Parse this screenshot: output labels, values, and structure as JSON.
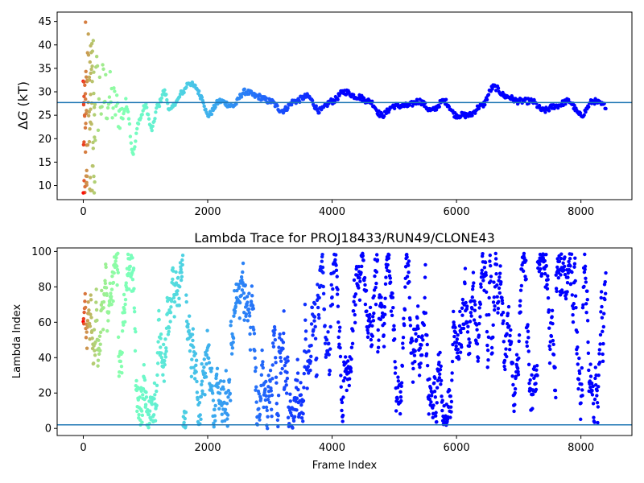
{
  "chart_data": [
    {
      "type": "scatter",
      "title": "",
      "xlabel": "",
      "ylabel": "ΔG (kT)",
      "ylabel_parts": [
        "Δ",
        "G",
        " (kT)"
      ],
      "xlim": [
        -420,
        8820
      ],
      "ylim": [
        7,
        47
      ],
      "xticks": [
        0,
        2000,
        4000,
        6000,
        8000
      ],
      "yticks": [
        10,
        15,
        20,
        25,
        30,
        35,
        40,
        45
      ],
      "hline": 27.7,
      "hline_color": "#1f77b4",
      "colormap": "rainbow (reversed over frame index)",
      "grid": false,
      "n_frames": 8400,
      "series_description": "Free energy estimate per frame; large spread (8–45) in first ~200 frames, converging to ~25–31 band after ~1500",
      "trace_keypoints": [
        [
          0,
          28
        ],
        [
          100,
          30
        ],
        [
          200,
          29
        ],
        [
          300,
          29
        ],
        [
          400,
          29
        ],
        [
          500,
          27
        ],
        [
          600,
          25
        ],
        [
          700,
          27
        ],
        [
          800,
          17
        ],
        [
          900,
          24
        ],
        [
          1000,
          27
        ],
        [
          1100,
          22
        ],
        [
          1200,
          27
        ],
        [
          1300,
          30
        ],
        [
          1400,
          26
        ],
        [
          1500,
          28
        ],
        [
          1600,
          30
        ],
        [
          1700,
          32
        ],
        [
          1800,
          31
        ],
        [
          1900,
          29
        ],
        [
          2000,
          25
        ],
        [
          2200,
          28
        ],
        [
          2400,
          27
        ],
        [
          2600,
          30
        ],
        [
          2800,
          29
        ],
        [
          3000,
          28
        ],
        [
          3200,
          26
        ],
        [
          3400,
          28
        ],
        [
          3600,
          29
        ],
        [
          3800,
          26
        ],
        [
          4000,
          28
        ],
        [
          4200,
          30
        ],
        [
          4400,
          29
        ],
        [
          4600,
          28
        ],
        [
          4800,
          25
        ],
        [
          5000,
          27
        ],
        [
          5200,
          27
        ],
        [
          5400,
          28
        ],
        [
          5600,
          26
        ],
        [
          5800,
          28
        ],
        [
          6000,
          25
        ],
        [
          6200,
          25
        ],
        [
          6400,
          27
        ],
        [
          6600,
          31
        ],
        [
          6800,
          29
        ],
        [
          7000,
          28
        ],
        [
          7200,
          28
        ],
        [
          7400,
          26
        ],
        [
          7600,
          27
        ],
        [
          7800,
          28
        ],
        [
          8000,
          25
        ],
        [
          8200,
          28
        ],
        [
          8400,
          27
        ]
      ]
    },
    {
      "type": "scatter",
      "title": "Lambda Trace for PROJ18433/RUN49/CLONE43",
      "xlabel": "Frame Index",
      "ylabel": "Lambda Index",
      "xlim": [
        -420,
        8820
      ],
      "ylim": [
        -4,
        102
      ],
      "xticks": [
        0,
        2000,
        4000,
        6000,
        8000
      ],
      "yticks": [
        0,
        20,
        40,
        60,
        80,
        100
      ],
      "hline": 2,
      "hline_color": "#1f77b4",
      "colormap": "rainbow (reversed over frame index)",
      "grid": false,
      "n_frames": 8400,
      "value_range": [
        0,
        99
      ],
      "series_description": "Lambda index per frame wandering randomly across 0–99"
    }
  ]
}
